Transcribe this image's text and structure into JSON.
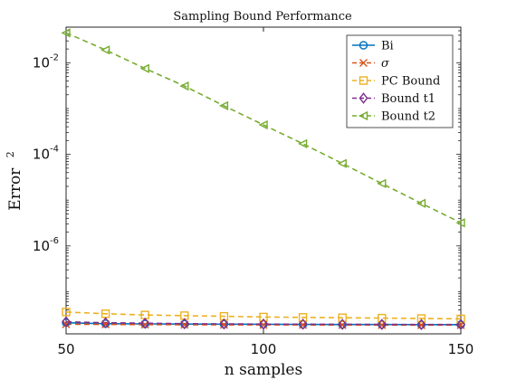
{
  "chart_data": {
    "type": "line",
    "title": "Sampling Bound Performance",
    "xlabel": "n samples",
    "ylabel": "Error",
    "ylabel_sup": "2",
    "x": [
      50,
      60,
      70,
      80,
      90,
      100,
      110,
      120,
      130,
      140,
      150
    ],
    "xlim": [
      50,
      150
    ],
    "ylim": [
      1.2e-08,
      0.06
    ],
    "yscale": "log",
    "xticks": [
      50,
      100,
      150
    ],
    "yticks": [
      {
        "value": 0.01,
        "base": "10",
        "exp": "-2"
      },
      {
        "value": 0.0001,
        "base": "10",
        "exp": "-4"
      },
      {
        "value": 1e-06,
        "base": "10",
        "exp": "-6"
      }
    ],
    "legend_position": "top-right",
    "series": [
      {
        "name": "Bi",
        "color": "#0072BD",
        "style": "solid",
        "marker": "circle",
        "values": [
          2.1e-08,
          2e-08,
          1.98e-08,
          1.96e-08,
          1.95e-08,
          1.94e-08,
          1.93e-08,
          1.92e-08,
          1.92e-08,
          1.91e-08,
          1.91e-08
        ]
      },
      {
        "name": "σ",
        "color": "#D95319",
        "style": "dashed",
        "marker": "x",
        "values": [
          1.95e-08,
          1.93e-08,
          1.91e-08,
          1.9e-08,
          1.89e-08,
          1.88e-08,
          1.88e-08,
          1.87e-08,
          1.87e-08,
          1.86e-08,
          1.86e-08
        ]
      },
      {
        "name": "PC Bound",
        "color": "#EDB120",
        "style": "dashed",
        "marker": "square",
        "values": [
          3.6e-08,
          3.3e-08,
          3.1e-08,
          3e-08,
          2.9e-08,
          2.8e-08,
          2.75e-08,
          2.7e-08,
          2.65e-08,
          2.6e-08,
          2.55e-08
        ]
      },
      {
        "name": "Bound t1",
        "color": "#7E2F8E",
        "style": "dashed",
        "marker": "diamond",
        "values": [
          2.2e-08,
          2.1e-08,
          2.05e-08,
          2e-08,
          1.98e-08,
          1.96e-08,
          1.95e-08,
          1.94e-08,
          1.93e-08,
          1.92e-08,
          1.92e-08
        ]
      },
      {
        "name": "Bound t2",
        "color": "#77AC30",
        "style": "dashed",
        "marker": "triangle-left",
        "values": [
          0.045,
          0.019,
          0.0075,
          0.0031,
          0.00115,
          0.00044,
          0.00017,
          6.3e-05,
          2.3e-05,
          8.5e-06,
          3.2e-06
        ]
      }
    ]
  }
}
